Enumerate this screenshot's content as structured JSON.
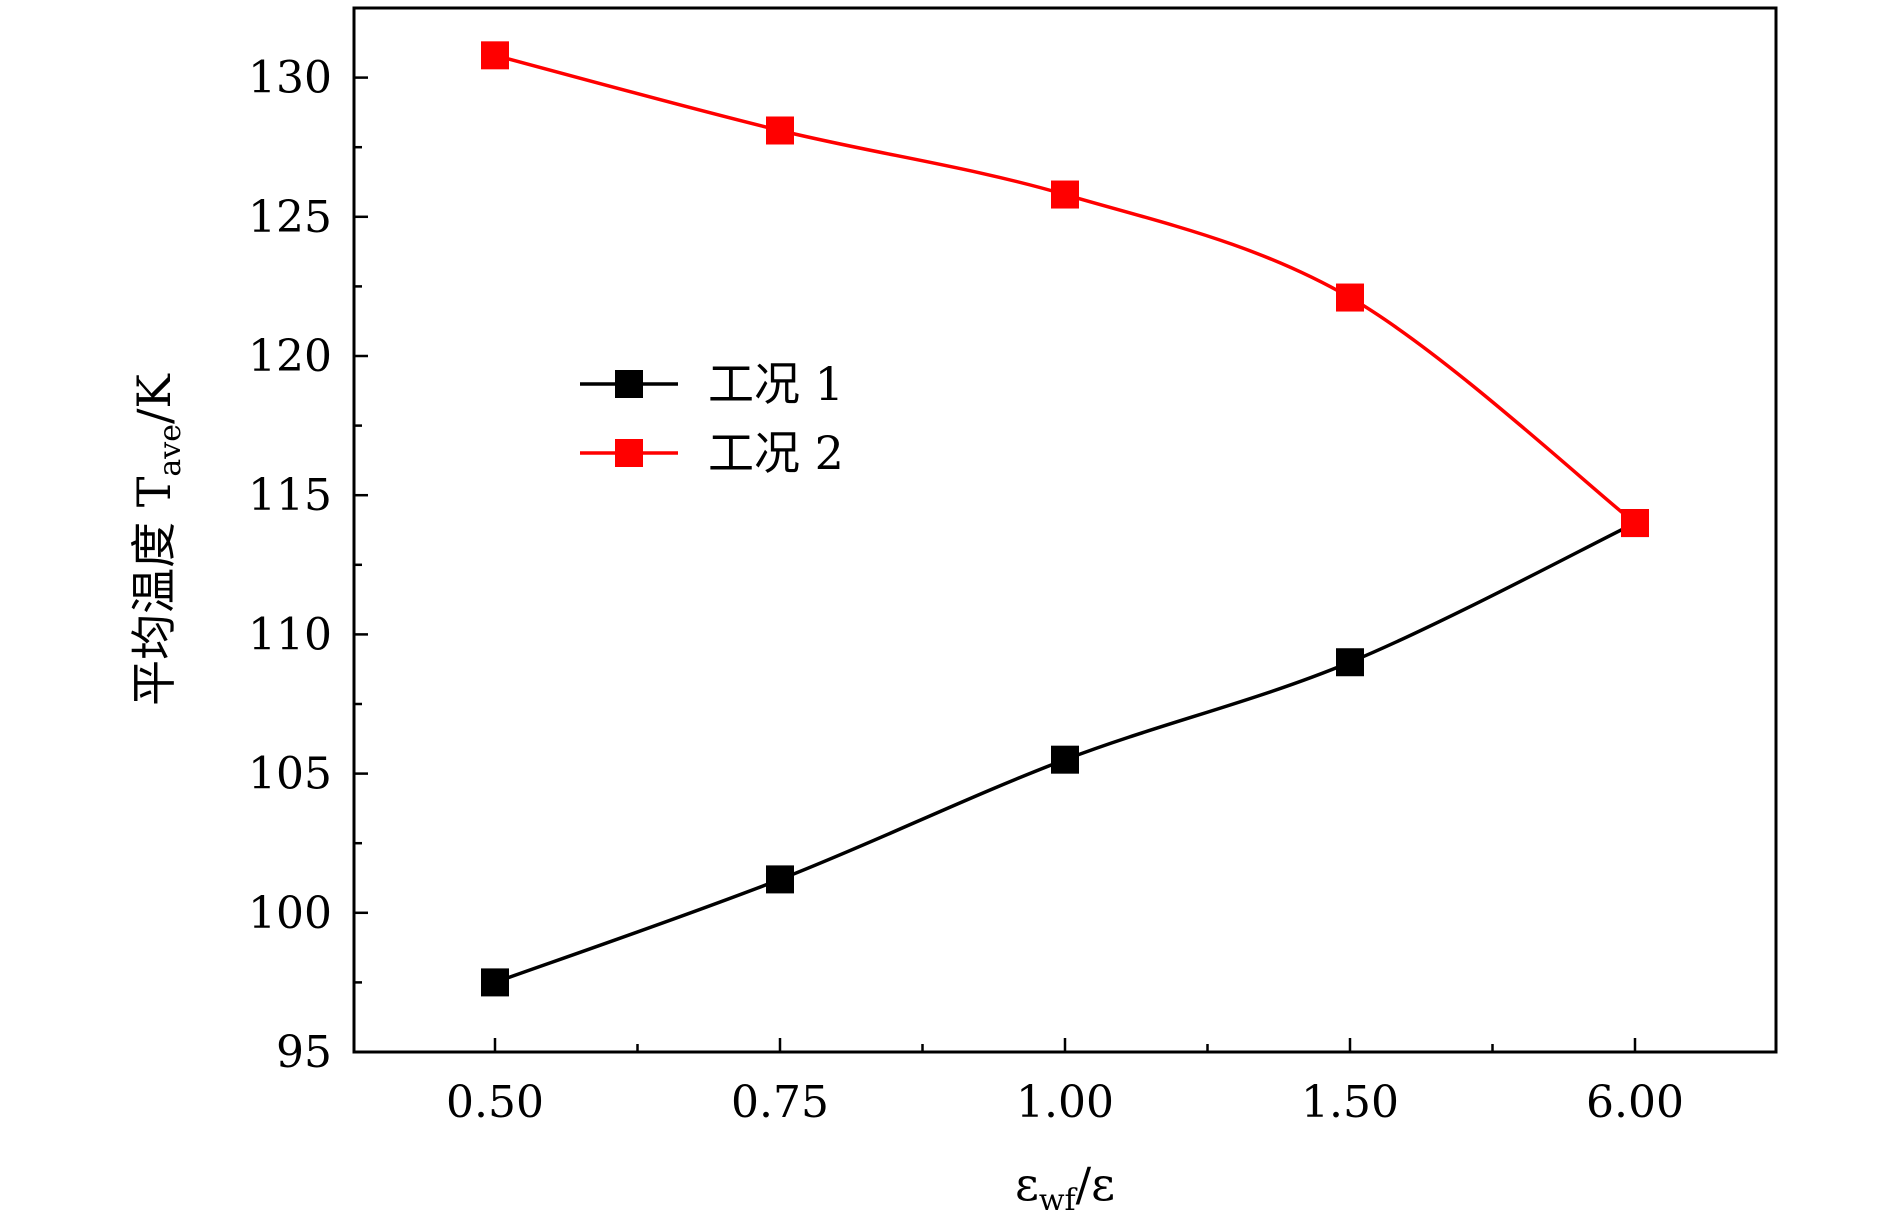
{
  "chart_data": {
    "type": "line",
    "categories": [
      "0.50",
      "0.75",
      "1.00",
      "1.50",
      "6.00"
    ],
    "series": [
      {
        "name": "工况 1",
        "color": "#000000",
        "values": [
          97.5,
          101.2,
          105.5,
          109.0,
          114.0
        ]
      },
      {
        "name": "工况 2",
        "color": "#ff0000",
        "values": [
          130.8,
          128.1,
          125.8,
          122.1,
          114.0
        ]
      }
    ],
    "title": "",
    "xlabel": {
      "main": "ε",
      "sub": "wf",
      "tail": "/ε"
    },
    "ylabel": {
      "main": "平均温度 T",
      "sub": "ave",
      "tail": "/K"
    },
    "ylim": [
      95,
      132.5
    ],
    "yticks": [
      95,
      100,
      105,
      110,
      115,
      120,
      125,
      130
    ],
    "grid": false,
    "legend": "upper-left"
  }
}
